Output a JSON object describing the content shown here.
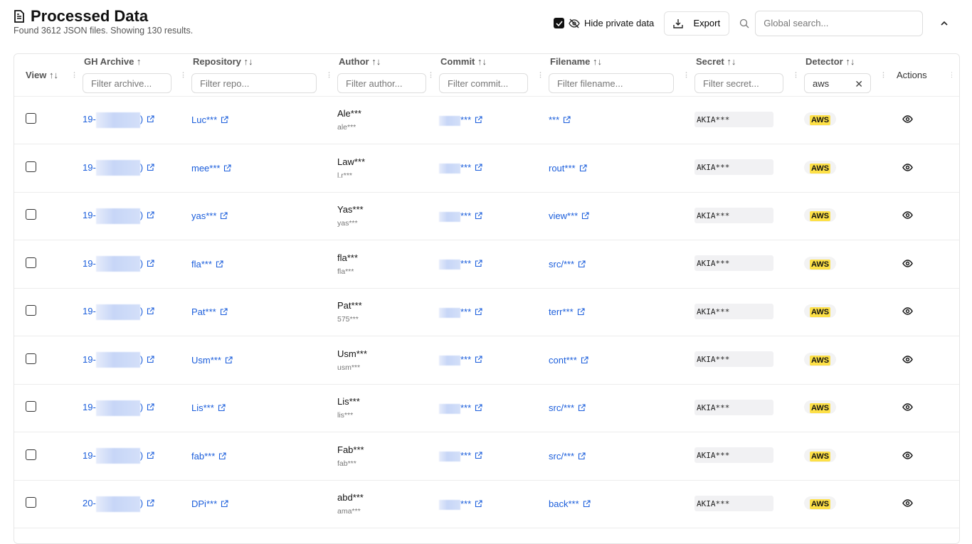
{
  "header": {
    "title": "Processed Data",
    "subtitle": "Found 3612 JSON files. Showing 130 results.",
    "icon": "file-icon"
  },
  "toolbar": {
    "hide_private_label": "Hide private data",
    "hide_private_checked": true,
    "export_label": "Export",
    "search_placeholder": "Global search..."
  },
  "columns": [
    {
      "label": "View ↑↓"
    },
    {
      "label": "GH Archive ↑",
      "filter_placeholder": "Filter archive..."
    },
    {
      "label": "Repository ↑↓",
      "filter_placeholder": "Filter repo..."
    },
    {
      "label": "Author ↑↓",
      "filter_placeholder": "Filter author..."
    },
    {
      "label": "Commit ↑↓",
      "filter_placeholder": "Filter commit..."
    },
    {
      "label": "Filename ↑↓",
      "filter_placeholder": "Filter filename..."
    },
    {
      "label": "Secret ↑↓",
      "filter_placeholder": "Filter secret..."
    },
    {
      "label": "Detector ↑↓",
      "filter_placeholder": "Filter detector...",
      "filter_value": "aws"
    },
    {
      "label": "Actions"
    }
  ],
  "rows": [
    {
      "archive": "19-",
      "repo": "Luc***",
      "author": "Ale***",
      "login": "ale***",
      "commit": "***",
      "filename": "***",
      "secret": "AKIA***",
      "detector": "AWS"
    },
    {
      "archive": "19-",
      "repo": "mee***",
      "author": "Law***",
      "login": "l.r***",
      "commit": "***",
      "filename": "rout***",
      "secret": "AKIA***",
      "detector": "AWS"
    },
    {
      "archive": "19-",
      "repo": "yas***",
      "author": "Yas***",
      "login": "yas***",
      "commit": "***",
      "filename": "view***",
      "secret": "AKIA***",
      "detector": "AWS"
    },
    {
      "archive": "19-",
      "repo": "fla***",
      "author": "fla***",
      "login": "fla***",
      "commit": "***",
      "filename": "src/***",
      "secret": "AKIA***",
      "detector": "AWS"
    },
    {
      "archive": "19-",
      "repo": "Pat***",
      "author": "Pat***",
      "login": "575***",
      "commit": "***",
      "filename": "terr***",
      "secret": "AKIA***",
      "detector": "AWS"
    },
    {
      "archive": "19-",
      "repo": "Usm***",
      "author": "Usm***",
      "login": "usm***",
      "commit": "***",
      "filename": "cont***",
      "secret": "AKIA***",
      "detector": "AWS"
    },
    {
      "archive": "19-",
      "repo": "Lis***",
      "author": "Lis***",
      "login": "lis***",
      "commit": "***",
      "filename": "src/***",
      "secret": "AKIA***",
      "detector": "AWS"
    },
    {
      "archive": "19-",
      "repo": "fab***",
      "author": "Fab***",
      "login": "fab***",
      "commit": "***",
      "filename": "src/***",
      "secret": "AKIA***",
      "detector": "AWS"
    },
    {
      "archive": "20-",
      "repo": "DPi***",
      "author": "abd***",
      "login": "ama***",
      "commit": "***",
      "filename": "back***",
      "secret": "AKIA***",
      "detector": "AWS"
    }
  ]
}
